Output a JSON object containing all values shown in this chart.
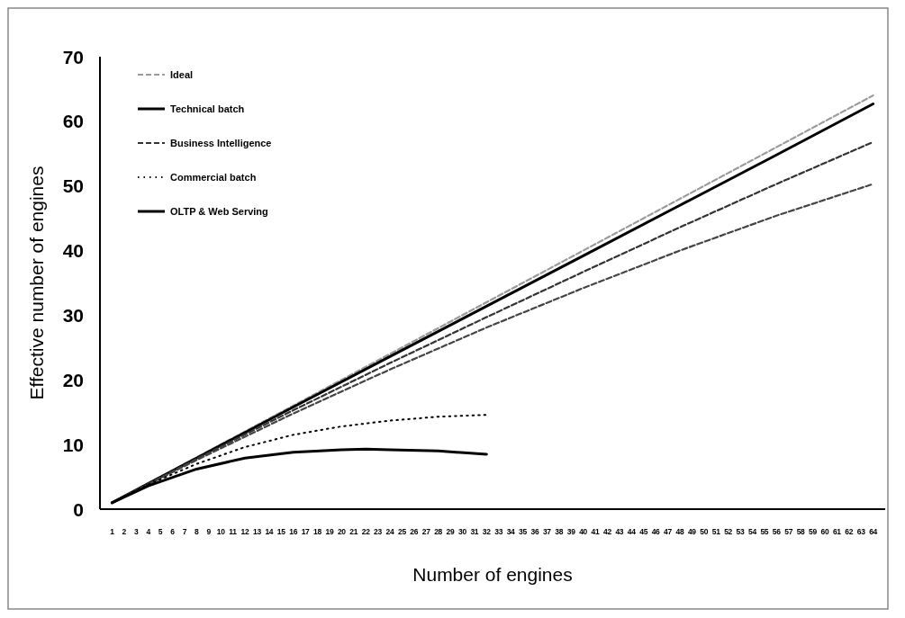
{
  "chart_data": {
    "type": "line",
    "xlabel": "Number of engines",
    "ylabel": "Effective number of engines",
    "xlim": [
      0,
      65
    ],
    "xticks": [
      1,
      2,
      3,
      4,
      5,
      6,
      7,
      8,
      9,
      10,
      11,
      12,
      13,
      14,
      15,
      16,
      17,
      18,
      19,
      20,
      21,
      22,
      23,
      24,
      25,
      26,
      27,
      28,
      29,
      30,
      31,
      32,
      33,
      34,
      35,
      36,
      37,
      38,
      39,
      40,
      41,
      42,
      43,
      44,
      45,
      46,
      47,
      48,
      49,
      50,
      51,
      52,
      53,
      54,
      55,
      56,
      57,
      58,
      59,
      60,
      61,
      62,
      63,
      64
    ],
    "ylim": [
      0,
      70
    ],
    "yticks": [
      0,
      10,
      20,
      30,
      40,
      50,
      60,
      70
    ],
    "grid": false,
    "legend": "top left",
    "marker": "none",
    "series": [
      {
        "name": "Ideal",
        "color": "#9a9a9a",
        "line_style": "dashed",
        "x": [
          1,
          64
        ],
        "values": [
          1,
          64
        ]
      },
      {
        "name": "Technical batch",
        "color": "#000000",
        "line_style": "solid",
        "x": [
          1,
          8,
          16,
          24,
          32,
          40,
          48,
          56,
          64
        ],
        "values": [
          1,
          7.9,
          15.8,
          23.6,
          31.4,
          39.2,
          47,
          54.8,
          62.7
        ]
      },
      {
        "name": "Business Intelligence",
        "color": "#333333",
        "line_style": "dashed",
        "x": [
          1,
          8,
          16,
          24,
          32,
          40,
          48,
          56,
          64
        ],
        "values": [
          1,
          7.8,
          15.3,
          22.6,
          29.7,
          36.7,
          43.6,
          50.3,
          56.8
        ]
      },
      {
        "color": "#444444",
        "line_style": "dashed",
        "x": [
          1,
          8,
          16,
          24,
          32,
          40,
          48,
          56,
          64
        ],
        "values": [
          1,
          7.6,
          14.8,
          21.6,
          28.1,
          34.2,
          40,
          45.4,
          50.3
        ]
      },
      {
        "name": "Commercial batch",
        "color": "#000000",
        "line_style": "dotted",
        "x": [
          1,
          4,
          8,
          12,
          16,
          20,
          24,
          28,
          32
        ],
        "values": [
          1,
          3.8,
          7,
          9.6,
          11.5,
          12.8,
          13.7,
          14.3,
          14.6
        ]
      },
      {
        "name": "OLTP & Web Serving",
        "color": "#000000",
        "line_style": "solid",
        "x": [
          1,
          4,
          8,
          12,
          16,
          20,
          22,
          24,
          28,
          32
        ],
        "values": [
          1,
          3.6,
          6.2,
          7.9,
          8.8,
          9.2,
          9.3,
          9.2,
          9,
          8.5
        ]
      }
    ]
  }
}
